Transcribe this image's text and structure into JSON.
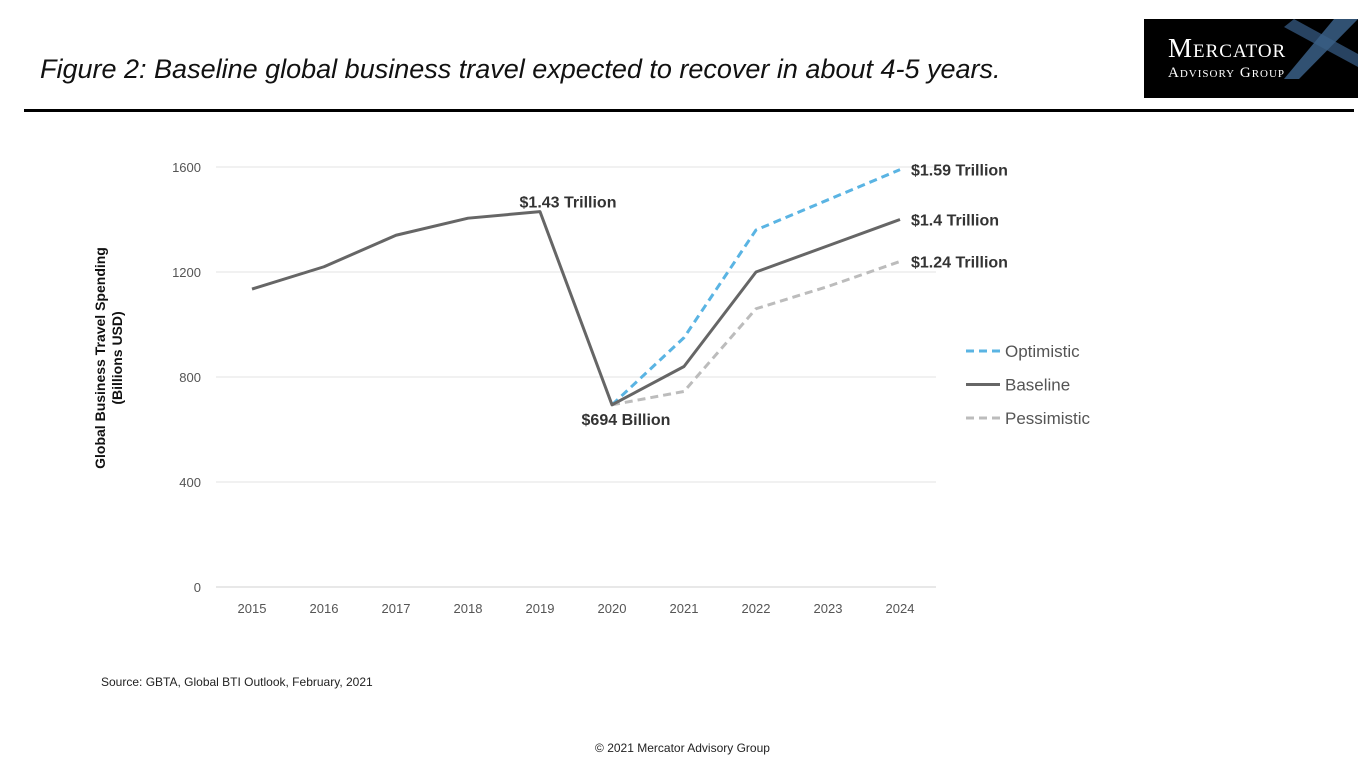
{
  "header": {
    "title": "Figure 2: Baseline global business travel expected to recover in about 4-5 years.",
    "logo_line1": "Mercator",
    "logo_line2": "Advisory Group"
  },
  "footer": {
    "source": "Source: GBTA, Global BTI Outlook, February, 2021",
    "copyright": "© 2021 Mercator Advisory Group"
  },
  "chart_data": {
    "type": "line",
    "ylabel_line1": "Global Business Travel Spending",
    "ylabel_line2": "(Billions USD)",
    "xlabel": "",
    "categories": [
      "2015",
      "2016",
      "2017",
      "2018",
      "2019",
      "2020",
      "2021",
      "2022",
      "2023",
      "2024"
    ],
    "ylim": [
      0,
      1600
    ],
    "yticks": [
      0,
      400,
      800,
      1200,
      1600
    ],
    "grid": "horizontal",
    "legend_position": "right",
    "series": [
      {
        "name": "Optimistic",
        "color": "#5ab4e3",
        "dash": "dashed",
        "values": [
          null,
          null,
          null,
          null,
          null,
          694,
          950,
          1360,
          1475,
          1590
        ]
      },
      {
        "name": "Baseline",
        "color": "#666666",
        "dash": "solid",
        "values": [
          1135,
          1220,
          1340,
          1405,
          1430,
          694,
          840,
          1200,
          1300,
          1400
        ]
      },
      {
        "name": "Pessimistic",
        "color": "#bcbcbc",
        "dash": "dashed",
        "values": [
          null,
          null,
          null,
          null,
          null,
          694,
          745,
          1060,
          1145,
          1240
        ]
      }
    ],
    "annotations": [
      {
        "text": "$1.43 Trillion",
        "category": "2019",
        "value": 1430,
        "anchor": "above"
      },
      {
        "text": "$694 Billion",
        "category": "2020",
        "value": 694,
        "anchor": "below"
      },
      {
        "text": "$1.59 Trillion",
        "category": "2024",
        "value": 1590,
        "anchor": "right"
      },
      {
        "text": "$1.4 Trillion",
        "category": "2024",
        "value": 1400,
        "anchor": "right"
      },
      {
        "text": "$1.24 Trillion",
        "category": "2024",
        "value": 1240,
        "anchor": "right"
      }
    ]
  }
}
